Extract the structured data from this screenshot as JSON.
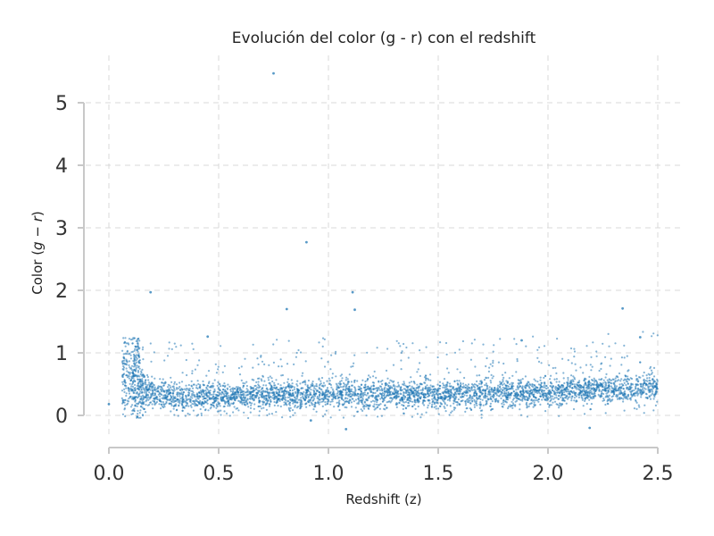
{
  "chart_data": {
    "type": "scatter",
    "title": "Evolución del color (g - r) con el redshift",
    "xlabel": "Redshift (z)",
    "ylabel_prefix": "Color (",
    "ylabel_var1": "g",
    "ylabel_op": " − ",
    "ylabel_var2": "r",
    "ylabel_suffix": ")",
    "xlim": [
      -0.12,
      2.5
    ],
    "ylim": [
      -0.5,
      5.75
    ],
    "xticks": [
      "0.0",
      "0.5",
      "1.0",
      "1.5",
      "2.0",
      "2.5"
    ],
    "yticks": [
      "0",
      "1",
      "2",
      "3",
      "4",
      "5"
    ],
    "grid": true,
    "color": "#1f77b4",
    "band": {
      "description_x": [
        0.1,
        0.2,
        0.3,
        0.5,
        0.75,
        1.0,
        1.25,
        1.5,
        1.75,
        2.0,
        2.25,
        2.5
      ],
      "median_y": [
        0.45,
        0.35,
        0.3,
        0.3,
        0.33,
        0.35,
        0.35,
        0.33,
        0.35,
        0.37,
        0.42,
        0.45
      ],
      "point_count_approx": 4500
    },
    "outliers": [
      {
        "x": 0.75,
        "y": 5.47
      },
      {
        "x": 0.9,
        "y": 2.77
      },
      {
        "x": 0.19,
        "y": 1.97
      },
      {
        "x": 1.11,
        "y": 1.97
      },
      {
        "x": 0.81,
        "y": 1.7
      },
      {
        "x": 1.12,
        "y": 1.69
      },
      {
        "x": 2.34,
        "y": 1.71
      },
      {
        "x": 0.45,
        "y": 1.26
      },
      {
        "x": 1.88,
        "y": 1.2
      },
      {
        "x": 2.42,
        "y": 1.25
      },
      {
        "x": 0.0,
        "y": 0.18
      },
      {
        "x": 0.92,
        "y": -0.08
      },
      {
        "x": 1.08,
        "y": -0.22
      },
      {
        "x": 2.19,
        "y": -0.2
      }
    ]
  }
}
